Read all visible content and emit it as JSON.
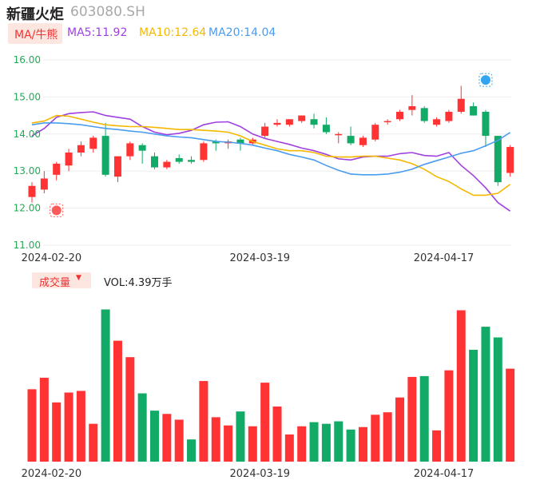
{
  "header": {
    "stock_name": "新疆火炬",
    "stock_code": "603080.SH"
  },
  "ma_bar": {
    "chip_label": "MA/牛熊",
    "ma5": "MA5:11.92",
    "ma10": "MA10:12.64",
    "ma20": "MA20:14.04"
  },
  "volume_bar": {
    "chip_label": "成交量",
    "vol_text": "VOL:4.39万手"
  },
  "colors": {
    "up": "#ff3333",
    "down": "#11aa66",
    "ma5": "#a040e0",
    "ma10": "#f5b800",
    "ma20": "#4a9cf0",
    "axis_text": "#22aa55",
    "grid": "#eeeeee"
  },
  "markers": {
    "low_icon": "bull-icon",
    "high_icon": "bear-icon"
  },
  "chart_data": {
    "type": "candlestick",
    "y_ticks": [
      "16.00",
      "15.00",
      "14.00",
      "13.00",
      "12.00",
      "11.00"
    ],
    "ylim": [
      11.0,
      16.0
    ],
    "x_tick_labels": [
      {
        "index": 1,
        "label": "2024-02-20"
      },
      {
        "index": 18,
        "label": "2024-03-19"
      },
      {
        "index": 33,
        "label": "2024-04-17"
      }
    ],
    "candles": [
      {
        "o": 12.3,
        "h": 12.7,
        "l": 12.15,
        "c": 12.6
      },
      {
        "o": 12.5,
        "h": 13.0,
        "l": 12.4,
        "c": 12.8
      },
      {
        "o": 12.9,
        "h": 13.25,
        "l": 12.75,
        "c": 13.2
      },
      {
        "o": 13.15,
        "h": 13.6,
        "l": 13.0,
        "c": 13.5
      },
      {
        "o": 13.5,
        "h": 13.8,
        "l": 13.4,
        "c": 13.7
      },
      {
        "o": 13.6,
        "h": 13.95,
        "l": 13.5,
        "c": 13.9
      },
      {
        "o": 13.95,
        "h": 14.3,
        "l": 12.85,
        "c": 12.9
      },
      {
        "o": 12.85,
        "h": 13.4,
        "l": 12.7,
        "c": 13.4
      },
      {
        "o": 13.4,
        "h": 13.8,
        "l": 13.3,
        "c": 13.75
      },
      {
        "o": 13.7,
        "h": 13.75,
        "l": 13.2,
        "c": 13.55
      },
      {
        "o": 13.4,
        "h": 13.5,
        "l": 13.05,
        "c": 13.1
      },
      {
        "o": 13.1,
        "h": 13.3,
        "l": 13.05,
        "c": 13.25
      },
      {
        "o": 13.35,
        "h": 13.45,
        "l": 13.2,
        "c": 13.25
      },
      {
        "o": 13.3,
        "h": 13.4,
        "l": 13.2,
        "c": 13.25
      },
      {
        "o": 13.3,
        "h": 13.8,
        "l": 13.25,
        "c": 13.75
      },
      {
        "o": 13.8,
        "h": 13.85,
        "l": 13.55,
        "c": 13.75
      },
      {
        "o": 13.75,
        "h": 13.85,
        "l": 13.6,
        "c": 13.8
      },
      {
        "o": 13.85,
        "h": 13.9,
        "l": 13.55,
        "c": 13.75
      },
      {
        "o": 13.75,
        "h": 13.9,
        "l": 13.7,
        "c": 13.85
      },
      {
        "o": 13.95,
        "h": 14.3,
        "l": 13.9,
        "c": 14.2
      },
      {
        "o": 14.25,
        "h": 14.4,
        "l": 14.2,
        "c": 14.3
      },
      {
        "o": 14.25,
        "h": 14.4,
        "l": 14.2,
        "c": 14.4
      },
      {
        "o": 14.35,
        "h": 14.5,
        "l": 14.3,
        "c": 14.5
      },
      {
        "o": 14.4,
        "h": 14.55,
        "l": 14.15,
        "c": 14.25
      },
      {
        "o": 14.25,
        "h": 14.45,
        "l": 14.0,
        "c": 14.05
      },
      {
        "o": 14.0,
        "h": 14.05,
        "l": 13.75,
        "c": 14.0
      },
      {
        "o": 13.95,
        "h": 14.2,
        "l": 13.7,
        "c": 13.75
      },
      {
        "o": 13.7,
        "h": 13.95,
        "l": 13.65,
        "c": 13.9
      },
      {
        "o": 13.85,
        "h": 14.3,
        "l": 13.8,
        "c": 14.25
      },
      {
        "o": 14.35,
        "h": 14.4,
        "l": 14.25,
        "c": 14.35
      },
      {
        "o": 14.4,
        "h": 14.65,
        "l": 14.35,
        "c": 14.6
      },
      {
        "o": 14.65,
        "h": 15.05,
        "l": 14.5,
        "c": 14.75
      },
      {
        "o": 14.7,
        "h": 14.75,
        "l": 14.3,
        "c": 14.35
      },
      {
        "o": 14.25,
        "h": 14.45,
        "l": 14.2,
        "c": 14.4
      },
      {
        "o": 14.35,
        "h": 14.65,
        "l": 14.3,
        "c": 14.6
      },
      {
        "o": 14.6,
        "h": 15.3,
        "l": 14.55,
        "c": 14.95
      },
      {
        "o": 14.75,
        "h": 14.85,
        "l": 14.5,
        "c": 14.5
      },
      {
        "o": 14.6,
        "h": 14.65,
        "l": 13.65,
        "c": 13.95
      },
      {
        "o": 13.95,
        "h": 13.95,
        "l": 12.6,
        "c": 12.7
      },
      {
        "o": 12.95,
        "h": 13.7,
        "l": 12.85,
        "c": 13.65
      }
    ],
    "volume": [
      {
        "v": 88,
        "dir": "up"
      },
      {
        "v": 102,
        "dir": "up"
      },
      {
        "v": 72,
        "dir": "up"
      },
      {
        "v": 84,
        "dir": "up"
      },
      {
        "v": 86,
        "dir": "up"
      },
      {
        "v": 46,
        "dir": "up"
      },
      {
        "v": 185,
        "dir": "down"
      },
      {
        "v": 147,
        "dir": "up"
      },
      {
        "v": 127,
        "dir": "up"
      },
      {
        "v": 83,
        "dir": "down"
      },
      {
        "v": 62,
        "dir": "down"
      },
      {
        "v": 58,
        "dir": "up"
      },
      {
        "v": 51,
        "dir": "up"
      },
      {
        "v": 27,
        "dir": "down"
      },
      {
        "v": 98,
        "dir": "up"
      },
      {
        "v": 54,
        "dir": "up"
      },
      {
        "v": 44,
        "dir": "up"
      },
      {
        "v": 61,
        "dir": "down"
      },
      {
        "v": 43,
        "dir": "up"
      },
      {
        "v": 96,
        "dir": "up"
      },
      {
        "v": 67,
        "dir": "up"
      },
      {
        "v": 33,
        "dir": "up"
      },
      {
        "v": 43,
        "dir": "up"
      },
      {
        "v": 48,
        "dir": "down"
      },
      {
        "v": 46,
        "dir": "down"
      },
      {
        "v": 49,
        "dir": "down"
      },
      {
        "v": 39,
        "dir": "down"
      },
      {
        "v": 42,
        "dir": "up"
      },
      {
        "v": 57,
        "dir": "up"
      },
      {
        "v": 60,
        "dir": "up"
      },
      {
        "v": 78,
        "dir": "up"
      },
      {
        "v": 103,
        "dir": "up"
      },
      {
        "v": 104,
        "dir": "down"
      },
      {
        "v": 38,
        "dir": "up"
      },
      {
        "v": 111,
        "dir": "up"
      },
      {
        "v": 184,
        "dir": "up"
      },
      {
        "v": 136,
        "dir": "down"
      },
      {
        "v": 164,
        "dir": "down"
      },
      {
        "v": 151,
        "dir": "down"
      },
      {
        "v": 113,
        "dir": "up"
      }
    ],
    "vol_max": 190,
    "ma5_line": [
      13.95,
      14.15,
      14.45,
      14.55,
      14.58,
      14.6,
      14.5,
      14.45,
      14.4,
      14.2,
      14.05,
      13.98,
      14.02,
      14.1,
      14.25,
      14.32,
      14.33,
      14.2,
      14.0,
      13.88,
      13.8,
      13.72,
      13.62,
      13.55,
      13.45,
      13.33,
      13.3,
      13.38,
      13.4,
      13.4,
      13.47,
      13.5,
      13.42,
      13.4,
      13.5,
      13.15,
      12.88,
      12.55,
      12.15,
      11.92
    ],
    "ma10_line": [
      14.3,
      14.35,
      14.5,
      14.48,
      14.4,
      14.32,
      14.25,
      14.22,
      14.2,
      14.2,
      14.18,
      14.15,
      14.12,
      14.12,
      14.1,
      14.08,
      14.05,
      13.95,
      13.8,
      13.7,
      13.6,
      13.55,
      13.55,
      13.5,
      13.4,
      13.38,
      13.38,
      13.4,
      13.4,
      13.35,
      13.3,
      13.2,
      13.05,
      12.85,
      12.72,
      12.52,
      12.35,
      12.35,
      12.4,
      12.64
    ],
    "ma20_line": [
      14.25,
      14.3,
      14.3,
      14.28,
      14.25,
      14.2,
      14.15,
      14.12,
      14.08,
      14.05,
      14.0,
      13.95,
      13.92,
      13.9,
      13.85,
      13.8,
      13.78,
      13.75,
      13.7,
      13.62,
      13.55,
      13.45,
      13.38,
      13.3,
      13.15,
      13.02,
      12.92,
      12.9,
      12.9,
      12.92,
      12.97,
      13.05,
      13.18,
      13.28,
      13.38,
      13.48,
      13.55,
      13.68,
      13.83,
      14.04
    ]
  }
}
